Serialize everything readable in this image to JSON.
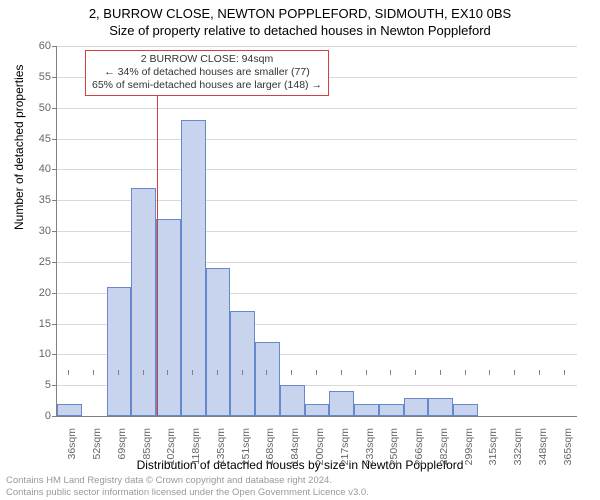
{
  "title_line1": "2, BURROW CLOSE, NEWTON POPPLEFORD, SIDMOUTH, EX10 0BS",
  "title_line2": "Size of property relative to detached houses in Newton Poppleford",
  "ylabel": "Number of detached properties",
  "xlabel": "Distribution of detached houses by size in Newton Poppleford",
  "footer1": "Contains HM Land Registry data © Crown copyright and database right 2024.",
  "footer2": "Contains public sector information licensed under the Open Government Licence v3.0.",
  "annotation": {
    "line1": "2 BURROW CLOSE: 94sqm",
    "line2": "← 34% of detached houses are smaller (77)",
    "line3": "65% of semi-detached houses are larger (148) →",
    "marker_x_sqm": 94,
    "box_color": "#d04040",
    "text_color": "#333333"
  },
  "chart": {
    "type": "histogram",
    "ylim": [
      0,
      60
    ],
    "ytick_step": 5,
    "x_start_sqm": 28,
    "x_bin_width_sqm": 16.4,
    "x_tick_labels": [
      "36sqm",
      "52sqm",
      "69sqm",
      "85sqm",
      "102sqm",
      "118sqm",
      "135sqm",
      "151sqm",
      "168sqm",
      "184sqm",
      "200sqm",
      "217sqm",
      "233sqm",
      "250sqm",
      "266sqm",
      "282sqm",
      "299sqm",
      "315sqm",
      "332sqm",
      "348sqm",
      "365sqm"
    ],
    "bar_values": [
      2,
      0,
      21,
      37,
      32,
      48,
      24,
      17,
      12,
      5,
      2,
      4,
      2,
      2,
      3,
      3,
      2,
      0,
      0,
      0,
      0
    ],
    "bar_fill": "#c8d4ee",
    "bar_border": "#6688cc",
    "grid_color": "#d9d9d9",
    "axis_color": "#808080",
    "background_color": "#ffffff",
    "ytick_color": "#666666",
    "xtick_color": "#666666",
    "title_fontsize": 13,
    "label_fontsize": 12,
    "tick_fontsize": 11
  }
}
